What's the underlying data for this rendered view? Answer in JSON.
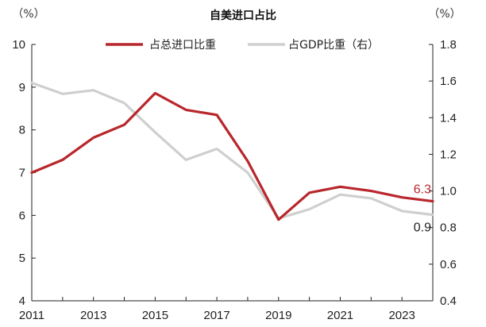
{
  "chart_data": {
    "type": "line",
    "title": "自美进口占比",
    "left_unit": "（%）",
    "right_unit": "（%）",
    "x": [
      2011,
      2012,
      2013,
      2014,
      2015,
      2016,
      2017,
      2018,
      2019,
      2020,
      2021,
      2022,
      2023,
      2024
    ],
    "x_tick_labels": [
      "2011",
      "2013",
      "2015",
      "2017",
      "2019",
      "2021",
      "2023"
    ],
    "y_left_ticks": [
      "4",
      "5",
      "6",
      "7",
      "8",
      "9",
      "10"
    ],
    "y_right_ticks": [
      "0.4",
      "0.6",
      "0.8",
      "1.0",
      "1.2",
      "1.4",
      "1.6",
      "1.8"
    ],
    "ylim_left": [
      4,
      10
    ],
    "ylim_right": [
      0.4,
      1.8
    ],
    "grid": false,
    "legend_position": "top-center",
    "series": [
      {
        "name": "占总进口比重",
        "axis": "left",
        "color": "#b8272c",
        "values": [
          7.0,
          7.3,
          7.82,
          8.12,
          8.86,
          8.47,
          8.35,
          7.27,
          5.9,
          6.53,
          6.67,
          6.57,
          6.42,
          6.33
        ],
        "end_label": "6.3"
      },
      {
        "name": "占GDP比重（右）",
        "axis": "right",
        "color": "#cfcfcf",
        "values": [
          1.59,
          1.53,
          1.55,
          1.48,
          1.32,
          1.17,
          1.23,
          1.1,
          0.85,
          0.9,
          0.98,
          0.96,
          0.89,
          0.87
        ],
        "end_label": "0.9"
      }
    ]
  }
}
